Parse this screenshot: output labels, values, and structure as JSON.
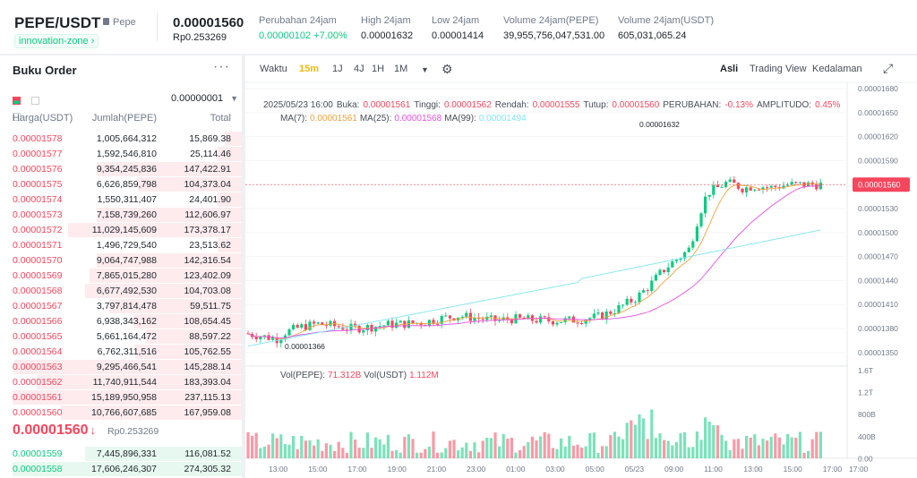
{
  "header": {
    "symbol": "PEPE/USDT",
    "tag": "Pepe",
    "zone": "innovation-zone",
    "price": "0.00001560",
    "price_idr": "Rp0.253269",
    "stats": [
      {
        "label": "Perubahan 24jam",
        "value": "0.00000102 +7.00%",
        "color": "#0ecb81"
      },
      {
        "label": "High 24jam",
        "value": "0.00001632"
      },
      {
        "label": "Low 24jam",
        "value": "0.00001414"
      },
      {
        "label": "Volume 24jam(PEPE)",
        "value": "39,955,756,047,531.00"
      },
      {
        "label": "Volume 24jam(USDT)",
        "value": "605,031,065.24"
      }
    ]
  },
  "orderbook": {
    "title": "Buku Order",
    "precision": "0.00000001",
    "col_price": "Harga(USDT)",
    "col_qty": "Jumlah(PEPE)",
    "col_total": "Total",
    "asks": [
      [
        "0.00001578",
        "1,005,664,312",
        "15,869.38",
        0.07
      ],
      [
        "0.00001577",
        "1,592,546,810",
        "25,114.46",
        0.1
      ],
      [
        "0.00001576",
        "9,354,245,836",
        "147,422.91",
        0.6
      ],
      [
        "0.00001575",
        "6,626,859,798",
        "104,373.04",
        0.43
      ],
      [
        "0.00001574",
        "1,550,311,407",
        "24,401.90",
        0.1
      ],
      [
        "0.00001573",
        "7,158,739,260",
        "112,606.97",
        0.6
      ],
      [
        "0.00001572",
        "11,029,145,609",
        "173,378.17",
        0.72
      ],
      [
        "0.00001571",
        "1,496,729,540",
        "23,513.62",
        0.1
      ],
      [
        "0.00001570",
        "9,064,747,988",
        "142,316.54",
        0.6
      ],
      [
        "0.00001569",
        "7,865,015,280",
        "123,402.09",
        0.63
      ],
      [
        "0.00001568",
        "6,677,492,530",
        "104,703.08",
        0.65
      ],
      [
        "0.00001567",
        "3,797,814,478",
        "59,511.75",
        0.55
      ],
      [
        "0.00001566",
        "6,938,343,162",
        "108,654.45",
        0.45
      ],
      [
        "0.00001565",
        "5,661,164,472",
        "88,597.22",
        0.4
      ],
      [
        "0.00001564",
        "6,762,311,516",
        "105,762.55",
        0.44
      ],
      [
        "0.00001563",
        "9,295,466,541",
        "145,288.14",
        0.94
      ],
      [
        "0.00001562",
        "11,740,911,544",
        "183,393.04",
        0.85
      ],
      [
        "0.00001561",
        "15,189,950,958",
        "237,115.13",
        0.95
      ],
      [
        "0.00001560",
        "10,766,607,685",
        "167,959.08",
        0.75
      ]
    ],
    "mid_price": "0.00001560",
    "mid_arrow": "↓",
    "mid_idr": "Rp0.253269",
    "bids": [
      [
        "0.00001559",
        "7,445,896,331",
        "116,081.52",
        0.65
      ],
      [
        "0.00001558",
        "17,606,246,307",
        "274,305.32",
        0.95
      ]
    ]
  },
  "chart": {
    "toolbar": {
      "time": "Waktu",
      "intervals": [
        "15m",
        "1J",
        "4J",
        "1H",
        "1M"
      ],
      "active": "15m",
      "views": [
        "Asli",
        "Trading View",
        "Kedalaman"
      ],
      "active_view": "Asli"
    },
    "info": {
      "date": "2025/05/23 16:00",
      "open_l": "Buka:",
      "open": "0.00001561",
      "high_l": "Tinggi:",
      "high": "0.00001562",
      "low_l": "Rendah:",
      "low": "0.00001555",
      "close_l": "Tutup:",
      "close": "0.00001560",
      "chg_l": "PERUBAHAN:",
      "chg": "-0.13%",
      "amp_l": "AMPLITUDO:",
      "amp": "0.45%"
    },
    "ma": {
      "l7": "MA(7):",
      "v7": "0.00001561",
      "l25": "MA(25):",
      "v25": "0.00001568",
      "l99": "MA(99):",
      "v99": "0.00001494"
    },
    "vol": {
      "l1": "Vol(PEPE):",
      "v1": "71.312B",
      "l2": "Vol(USDT)",
      "v2": "1.112M"
    },
    "hi_label": "0.00001632",
    "lo_label": "0.00001366",
    "last_price": "0.00001560",
    "price_ticks": [
      "0.00001680",
      "0.00001650",
      "0.00001620",
      "0.00001590",
      "0.00001560",
      "0.00001530",
      "0.00001500",
      "0.00001470",
      "0.00001440",
      "0.00001410",
      "0.00001380",
      "0.00001350"
    ],
    "vol_ticks": [
      "1.6T",
      "1.2T",
      "800B",
      "400B",
      "0.00"
    ],
    "time_ticks": [
      "13:00",
      "15:00",
      "17:00",
      "19:00",
      "21:00",
      "23:00",
      "01:00",
      "03:00",
      "05:00",
      "05/23",
      "09:00",
      "11:00",
      "13:00",
      "15:00",
      "17:00",
      "17:00"
    ]
  },
  "colors": {
    "up": "#0ecb81",
    "down": "#f6465d",
    "ma7": "#f0a23c",
    "ma25": "#e64fe0",
    "ma99": "#7fe6f0"
  }
}
